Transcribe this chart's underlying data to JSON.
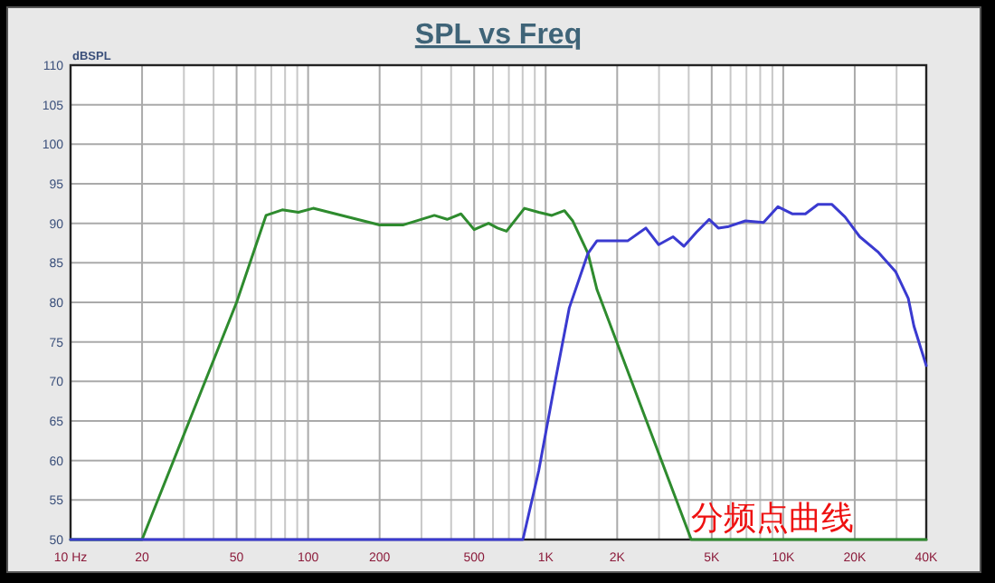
{
  "chart_data": {
    "type": "line",
    "title": "SPL vs Freq",
    "ylabel": "dBSPL",
    "log": "x",
    "grid": true,
    "marker": "none",
    "line_style": "solid",
    "xlim": [
      10,
      40000
    ],
    "ylim": [
      50,
      110
    ],
    "xticks": [
      {
        "value": 10,
        "label": "10 Hz"
      },
      20,
      {
        "value": 30,
        "label": null
      },
      {
        "value": 40,
        "label": null
      },
      50,
      {
        "value": 60,
        "label": null
      },
      {
        "value": 70,
        "label": null
      },
      {
        "value": 80,
        "label": null
      },
      {
        "value": 90,
        "label": null
      },
      100,
      200,
      {
        "value": 300,
        "label": null
      },
      {
        "value": 400,
        "label": null
      },
      500,
      {
        "value": 600,
        "label": null
      },
      {
        "value": 700,
        "label": null
      },
      {
        "value": 800,
        "label": null
      },
      {
        "value": 900,
        "label": null
      },
      {
        "value": 1000,
        "label": "1K"
      },
      {
        "value": 2000,
        "label": "2K"
      },
      {
        "value": 3000,
        "label": null
      },
      {
        "value": 4000,
        "label": null
      },
      {
        "value": 5000,
        "label": "5K"
      },
      {
        "value": 6000,
        "label": null
      },
      {
        "value": 7000,
        "label": null
      },
      {
        "value": 8000,
        "label": null
      },
      {
        "value": 9000,
        "label": null
      },
      {
        "value": 10000,
        "label": "10K"
      },
      {
        "value": 20000,
        "label": "20K"
      },
      {
        "value": 30000,
        "label": null
      },
      {
        "value": 40000,
        "label": "40K"
      }
    ],
    "yticks": [
      50,
      55,
      60,
      65,
      70,
      75,
      80,
      85,
      90,
      95,
      100,
      105,
      110
    ],
    "series": [
      {
        "color": "#2e8b2e",
        "x": [
          10,
          20,
          50,
          66.5,
          77.8,
          91,
          105,
          200,
          252,
          340,
          385,
          440,
          500,
          575,
          627,
          684,
          814,
          935,
          1062,
          1200,
          1300,
          1507,
          1645,
          4100,
          40000
        ],
        "values": [
          50,
          50,
          80,
          91.0,
          91.7,
          91.4,
          91.9,
          89.8,
          89.8,
          91.0,
          90.5,
          91.2,
          89.2,
          90.0,
          89.4,
          89.0,
          91.9,
          91.4,
          91.0,
          91.6,
          90.3,
          86.2,
          81.6,
          50,
          50
        ]
      },
      {
        "color": "#3a3ad0",
        "x": [
          10,
          802,
          935,
          1100,
          1257,
          1507,
          1645,
          2220,
          2640,
          2990,
          3440,
          3820,
          4320,
          4880,
          5330,
          5900,
          6930,
          8260,
          9500,
          10900,
          12400,
          14000,
          16000,
          18200,
          21000,
          25000,
          29700,
          33600,
          35500,
          40000
        ],
        "values": [
          50,
          50,
          58.7,
          70.2,
          79.3,
          86.2,
          87.8,
          87.8,
          89.4,
          87.3,
          88.3,
          87.1,
          88.9,
          90.5,
          89.4,
          89.6,
          90.3,
          90.1,
          92.1,
          91.2,
          91.2,
          92.4,
          92.4,
          90.8,
          88.3,
          86.4,
          83.9,
          80.5,
          77,
          72
        ]
      }
    ],
    "annotations": [
      "分频点曲线"
    ]
  }
}
